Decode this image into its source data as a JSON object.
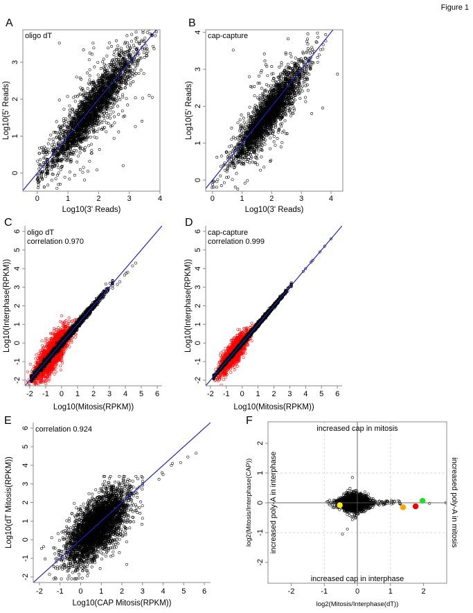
{
  "figure_title": "Figure 1",
  "chart_data": [
    {
      "panel": "A",
      "type": "scatter",
      "annotations": [
        "oligo dT"
      ],
      "xlabel": "Log10(3' Reads)",
      "ylabel": "Log10(5' Reads)",
      "xlim": [
        -0.47,
        4.0
      ],
      "ylim": [
        -0.49,
        3.88
      ],
      "xticks": [
        "0",
        "1",
        "2",
        "3",
        "4"
      ],
      "yticks": [
        "0",
        "1",
        "2",
        "3"
      ],
      "frame": "box",
      "reference_line": {
        "slope": 1,
        "intercept": 0,
        "color": "#2020c0"
      },
      "series": [
        {
          "color": "#000000",
          "marker": "open-circle"
        }
      ],
      "notable_points": [
        [
          0.72,
          3.52
        ],
        [
          1.82,
          3.52
        ],
        [
          3.85,
          3.72
        ],
        [
          3.65,
          2.1
        ],
        [
          3.75,
          2.05
        ],
        [
          0.75,
          -0.3
        ],
        [
          2.8,
          0.2
        ],
        [
          0.05,
          -0.25
        ]
      ]
    },
    {
      "panel": "B",
      "type": "scatter",
      "annotations": [
        "cap-capture"
      ],
      "xlabel": "Log10(3' Reads)",
      "ylabel": "Log10(5' Reads)",
      "xlim": [
        -0.23,
        4.4
      ],
      "ylim": [
        -0.3,
        4.07
      ],
      "xticks": [
        "0",
        "1",
        "2",
        "3",
        "4"
      ],
      "yticks": [
        "0",
        "1",
        "2",
        "3",
        "4"
      ],
      "frame": "box",
      "reference_line": {
        "slope": 1,
        "intercept": 0,
        "color": "#2020c0"
      },
      "series": [
        {
          "color": "#000000",
          "marker": "open-circle"
        }
      ],
      "notable_points": [
        [
          0.7,
          3.52
        ],
        [
          4.22,
          2.87
        ],
        [
          3.73,
          3.55
        ],
        [
          3.72,
          1.95
        ],
        [
          0.0,
          -0.12
        ],
        [
          3.35,
          1.8
        ]
      ]
    },
    {
      "panel": "C",
      "type": "scatter",
      "annotations": [
        "oligo dT",
        "correlation 0.970"
      ],
      "xlabel": "Log10(Mitosis(RPKM))",
      "ylabel": "Log10(Interphase(RPKM))",
      "xlim": [
        -2.3,
        6.3
      ],
      "ylim": [
        -2.3,
        6.3
      ],
      "xticks": [
        "-2",
        "-1",
        "0",
        "1",
        "2",
        "3",
        "4",
        "5",
        "6"
      ],
      "yticks": [
        "-2",
        "-1",
        "0",
        "1",
        "2",
        "3",
        "4",
        "5",
        "6"
      ],
      "frame": "axes",
      "correlation": 0.97,
      "reference_line": {
        "slope": 1,
        "intercept": 0,
        "color": "#2020c0"
      },
      "series": [
        {
          "color": "#ff0000",
          "marker": "open-circle"
        },
        {
          "color": "#000000",
          "marker": "open-circle"
        }
      ],
      "notable_points": [
        [
          4.45,
          4.15
        ],
        [
          4.65,
          4.3
        ],
        [
          4.05,
          3.75
        ],
        [
          4.15,
          3.8
        ],
        [
          3.95,
          3.65
        ],
        [
          3.5,
          3.15
        ],
        [
          3.65,
          3.3
        ]
      ]
    },
    {
      "panel": "D",
      "type": "scatter",
      "annotations": [
        "cap-capture",
        "correlation 0.999"
      ],
      "xlabel": "Log10(Mitosis(RPKM))",
      "ylabel": "Log10(Interphase(RPKM))",
      "xlim": [
        -2.3,
        6.3
      ],
      "ylim": [
        -2.3,
        6.3
      ],
      "xticks": [
        "-2",
        "-1",
        "0",
        "1",
        "2",
        "3",
        "4",
        "5",
        "6"
      ],
      "yticks": [
        "-2",
        "-1",
        "0",
        "1",
        "2",
        "3",
        "4",
        "5",
        "6"
      ],
      "frame": "axes",
      "correlation": 0.999,
      "reference_line": {
        "slope": 1,
        "intercept": 0,
        "color": "#2020c0"
      },
      "series": [
        {
          "color": "#ff0000",
          "marker": "open-circle"
        },
        {
          "color": "#000000",
          "marker": "open-circle"
        }
      ],
      "notable_points": [
        [
          3.85,
          3.85
        ],
        [
          4.0,
          4.0
        ],
        [
          4.35,
          4.35
        ],
        [
          4.45,
          4.45
        ],
        [
          4.9,
          4.9
        ],
        [
          5.2,
          5.2
        ],
        [
          5.6,
          5.6
        ]
      ]
    },
    {
      "panel": "E",
      "type": "scatter",
      "annotations": [
        "correlation 0.924"
      ],
      "xlabel": "Log10(CAP Mitosis(RPKM))",
      "ylabel": "Log10(dT Mitosis(RPKM))",
      "xlim": [
        -2.3,
        6.3
      ],
      "ylim": [
        -2.3,
        6.3
      ],
      "xticks": [
        "-2",
        "-1",
        "0",
        "1",
        "2",
        "3",
        "4",
        "5",
        "6"
      ],
      "yticks": [
        "-2",
        "-1",
        "0",
        "1",
        "2",
        "3",
        "4",
        "5",
        "6"
      ],
      "frame": "axes",
      "correlation": 0.924,
      "reference_line": {
        "slope": 1,
        "intercept": 0,
        "color": "#2020c0"
      },
      "series": [
        {
          "color": "#000000",
          "marker": "open-circle"
        }
      ],
      "notable_points": [
        [
          3.8,
          3.25
        ],
        [
          3.95,
          3.6
        ],
        [
          4.0,
          3.5
        ],
        [
          4.4,
          4.0
        ],
        [
          4.45,
          4.1
        ],
        [
          4.85,
          4.15
        ],
        [
          5.2,
          4.45
        ],
        [
          5.6,
          4.65
        ],
        [
          3.0,
          1.15
        ]
      ]
    },
    {
      "panel": "F",
      "type": "scatter",
      "annotations": [
        "increased cap in mitosis",
        "increased cap in interphase",
        "increased poly-A in interphase",
        "increased poly-A in mitosis"
      ],
      "xlabel": "log2(Mitosis/Interphase(dT))",
      "ylabel": "log2(Mitosis/Interphase(CAP))",
      "xlim": [
        -2.7,
        2.7
      ],
      "ylim": [
        -2.7,
        2.72
      ],
      "xticks": [
        "-2",
        "-1",
        "0",
        "1",
        "2"
      ],
      "yticks": [
        "-2",
        "-1",
        "0",
        "1",
        "2"
      ],
      "frame": "box",
      "grid": "dashed at ±1",
      "zero_lines": true,
      "series": [
        {
          "color": "#000000",
          "marker": "open-circle"
        }
      ],
      "highlighted_points": [
        {
          "x": -0.53,
          "y": -0.08,
          "color": "#ffee00"
        },
        {
          "x": 1.38,
          "y": -0.15,
          "color": "#ffa500"
        },
        {
          "x": 1.76,
          "y": -0.12,
          "color": "#ee0000"
        },
        {
          "x": 1.97,
          "y": 0.07,
          "color": "#22dd22"
        }
      ],
      "notable_points": [
        [
          -0.45,
          -1.05
        ],
        [
          -0.3,
          -0.88
        ],
        [
          2.18,
          -0.02
        ],
        [
          2.68,
          0.0
        ],
        [
          -0.15,
          0.85
        ]
      ]
    }
  ]
}
